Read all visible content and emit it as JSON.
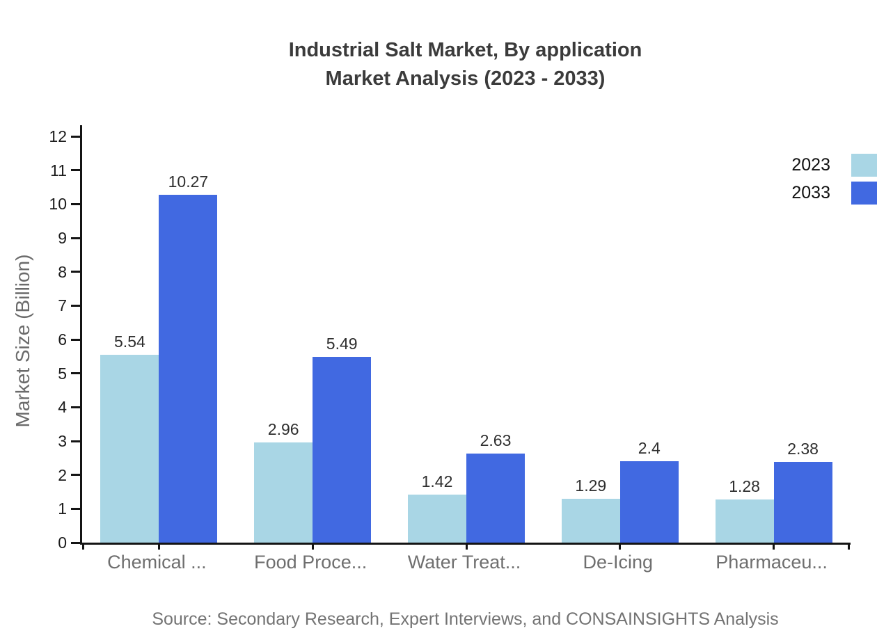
{
  "title": {
    "line1": "Industrial Salt Market, By application",
    "line2": "Market Analysis (2023 - 2033)"
  },
  "y_axis": {
    "label": "Market Size (Billion)"
  },
  "legend": {
    "items": [
      {
        "label": "2023",
        "color": "#a9d6e5"
      },
      {
        "label": "2033",
        "color": "#4169e1"
      }
    ]
  },
  "source": {
    "text": "Source: Secondary Research, Expert Interviews, and CONSAINSIGHTS Analysis"
  },
  "chart_data": {
    "type": "bar",
    "title": "Industrial Salt Market, By application Market Analysis (2023 - 2033)",
    "categories": [
      "Chemical ...",
      "Food Proce...",
      "Water Treat...",
      "De-Icing",
      "Pharmaceu..."
    ],
    "series": [
      {
        "name": "2023",
        "color": "#a9d6e5",
        "values": [
          5.54,
          2.96,
          1.42,
          1.29,
          1.28
        ],
        "labels": [
          "5.54",
          "2.96",
          "1.42",
          "1.29",
          "1.28"
        ]
      },
      {
        "name": "2033",
        "color": "#4169e1",
        "values": [
          10.27,
          5.49,
          2.63,
          2.4,
          2.38
        ],
        "labels": [
          "10.27",
          "5.49",
          "2.63",
          "2.4",
          "2.38"
        ]
      }
    ],
    "xlabel": "",
    "ylabel": "Market Size (Billion)",
    "ylim": [
      0,
      12
    ],
    "y_ticks": [
      0,
      1,
      2,
      3,
      4,
      5,
      6,
      7,
      8,
      9,
      10,
      11,
      12
    ],
    "grid": false,
    "legend_position": "top-right",
    "bar_value_labels": true
  }
}
